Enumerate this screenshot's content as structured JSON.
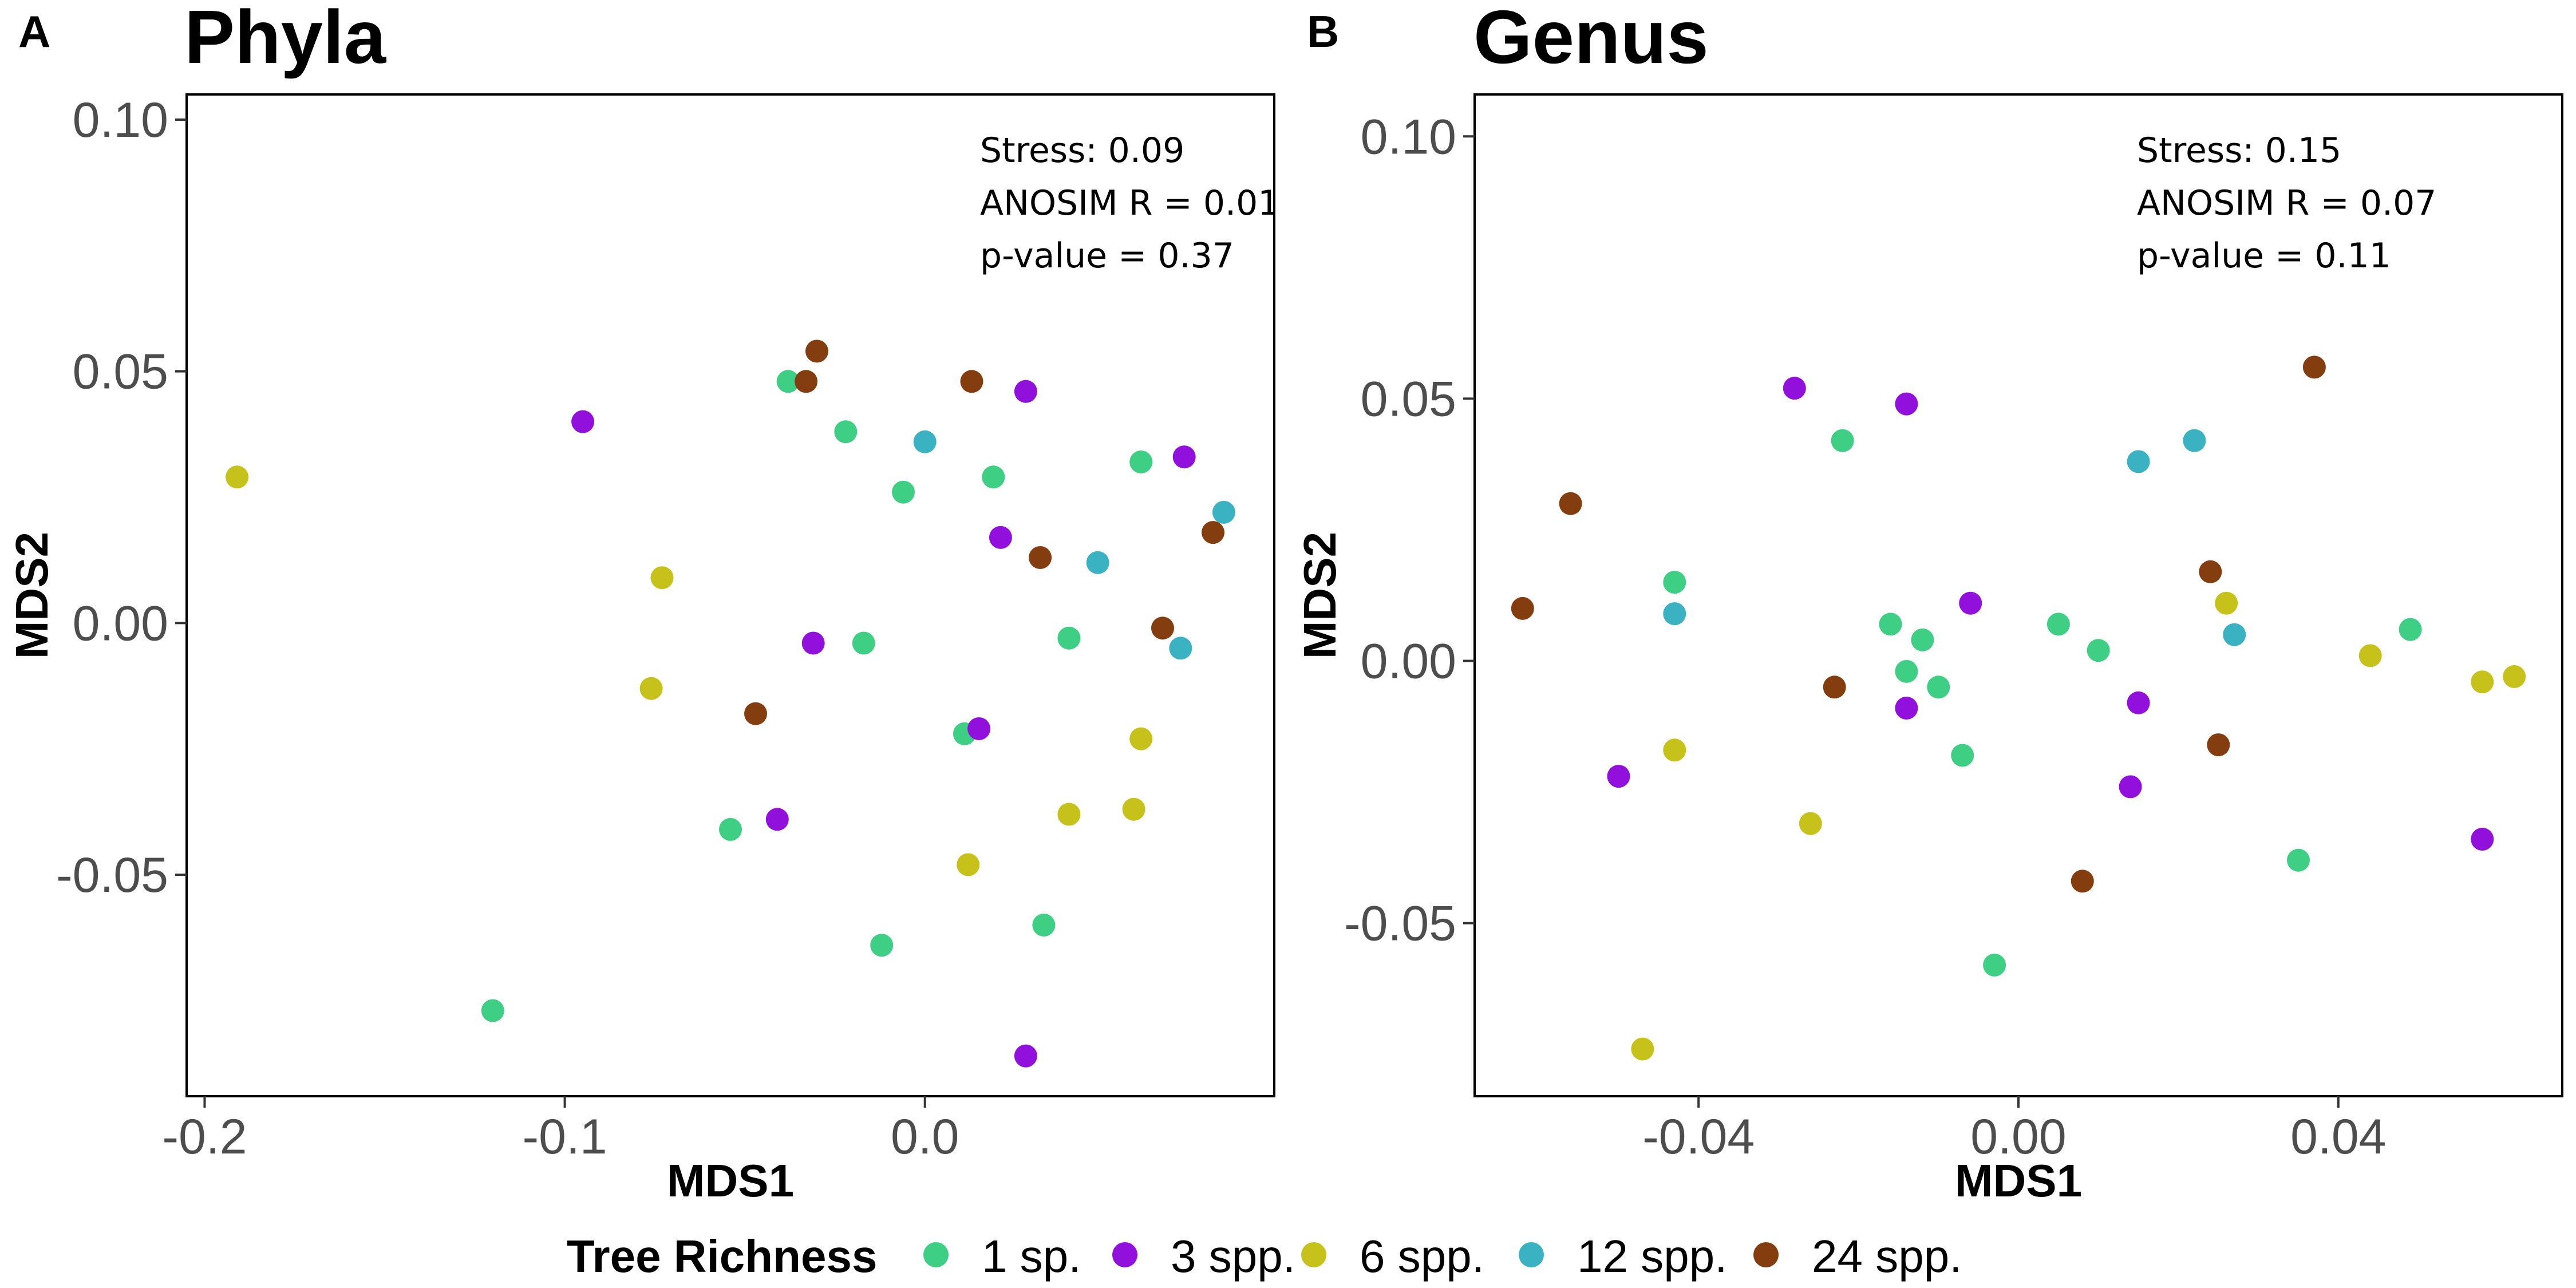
{
  "chart_data": [
    {
      "type": "scatter",
      "panel_letter": "A",
      "title": "Phyla",
      "xlabel": "MDS1",
      "ylabel": "MDS2",
      "xlim": [
        -0.205,
        0.097
      ],
      "ylim": [
        -0.094,
        0.105
      ],
      "xticks": [
        {
          "v": -0.2,
          "label": "-0.2"
        },
        {
          "v": -0.1,
          "label": "-0.1"
        },
        {
          "v": 0.0,
          "label": "0.0"
        }
      ],
      "yticks": [
        {
          "v": 0.1,
          "label": "0.10"
        },
        {
          "v": 0.05,
          "label": "0.05"
        },
        {
          "v": 0.0,
          "label": "0.00"
        },
        {
          "v": -0.05,
          "label": "-0.05"
        }
      ],
      "annotations": [
        "Stress:  0.09",
        "ANOSIM R =  0.01",
        "p-value =  0.37"
      ],
      "grid": false,
      "series": [
        {
          "name": "1 sp.",
          "points": [
            [
              -0.038,
              0.048
            ],
            [
              -0.022,
              0.038
            ],
            [
              -0.006,
              0.026
            ],
            [
              0.019,
              0.029
            ],
            [
              0.06,
              0.032
            ],
            [
              -0.017,
              -0.004
            ],
            [
              0.04,
              -0.003
            ],
            [
              0.011,
              -0.022
            ],
            [
              -0.054,
              -0.041
            ],
            [
              -0.012,
              -0.064
            ],
            [
              0.033,
              -0.06
            ],
            [
              -0.12,
              -0.077
            ]
          ]
        },
        {
          "name": "3 spp.",
          "points": [
            [
              -0.095,
              0.04
            ],
            [
              0.028,
              0.046
            ],
            [
              0.072,
              0.033
            ],
            [
              0.021,
              0.017
            ],
            [
              -0.031,
              -0.004
            ],
            [
              0.015,
              -0.021
            ],
            [
              -0.041,
              -0.039
            ],
            [
              0.028,
              -0.086
            ]
          ]
        },
        {
          "name": "6 spp.",
          "points": [
            [
              -0.191,
              0.029
            ],
            [
              -0.073,
              0.009
            ],
            [
              -0.076,
              -0.013
            ],
            [
              0.06,
              -0.023
            ],
            [
              0.04,
              -0.038
            ],
            [
              0.058,
              -0.037
            ],
            [
              0.012,
              -0.048
            ]
          ]
        },
        {
          "name": "12 spp.",
          "points": [
            [
              0.0,
              0.036
            ],
            [
              0.048,
              0.012
            ],
            [
              0.083,
              0.022
            ],
            [
              0.071,
              -0.005
            ]
          ]
        },
        {
          "name": "24 spp.",
          "points": [
            [
              -0.03,
              0.054
            ],
            [
              -0.033,
              0.048
            ],
            [
              0.013,
              0.048
            ],
            [
              0.032,
              0.013
            ],
            [
              0.08,
              0.018
            ],
            [
              0.066,
              -0.001
            ],
            [
              -0.047,
              -0.018
            ]
          ]
        }
      ]
    },
    {
      "type": "scatter",
      "panel_letter": "B",
      "title": "Genus",
      "xlabel": "MDS1",
      "ylabel": "MDS2",
      "xlim": [
        -0.068,
        0.068
      ],
      "ylim": [
        -0.083,
        0.108
      ],
      "xticks": [
        {
          "v": -0.04,
          "label": "-0.04"
        },
        {
          "v": 0.0,
          "label": "0.00"
        },
        {
          "v": 0.04,
          "label": "0.04"
        }
      ],
      "yticks": [
        {
          "v": 0.1,
          "label": "0.10"
        },
        {
          "v": 0.05,
          "label": "0.05"
        },
        {
          "v": 0.0,
          "label": "0.00"
        },
        {
          "v": -0.05,
          "label": "-0.05"
        }
      ],
      "annotations": [
        "Stress:  0.15",
        "ANOSIM R =  0.07",
        "p-value =  0.11"
      ],
      "grid": false,
      "series": [
        {
          "name": "1 sp.",
          "points": [
            [
              -0.022,
              0.042
            ],
            [
              -0.043,
              0.015
            ],
            [
              -0.016,
              0.007
            ],
            [
              -0.012,
              0.004
            ],
            [
              -0.014,
              -0.002
            ],
            [
              -0.01,
              -0.005
            ],
            [
              -0.007,
              -0.018
            ],
            [
              0.005,
              0.007
            ],
            [
              0.01,
              0.002
            ],
            [
              0.049,
              0.006
            ],
            [
              0.035,
              -0.038
            ],
            [
              -0.003,
              -0.058
            ]
          ]
        },
        {
          "name": "3 spp.",
          "points": [
            [
              -0.028,
              0.052
            ],
            [
              -0.014,
              0.049
            ],
            [
              -0.006,
              0.011
            ],
            [
              -0.014,
              -0.009
            ],
            [
              -0.05,
              -0.022
            ],
            [
              0.015,
              -0.008
            ],
            [
              0.014,
              -0.024
            ],
            [
              0.058,
              -0.034
            ]
          ]
        },
        {
          "name": "6 spp.",
          "points": [
            [
              0.026,
              0.011
            ],
            [
              0.044,
              0.001
            ],
            [
              0.058,
              -0.004
            ],
            [
              0.062,
              -0.003
            ],
            [
              -0.043,
              -0.017
            ],
            [
              -0.026,
              -0.031
            ],
            [
              -0.047,
              -0.074
            ]
          ]
        },
        {
          "name": "12 spp.",
          "points": [
            [
              0.015,
              0.038
            ],
            [
              0.022,
              0.042
            ],
            [
              -0.043,
              0.009
            ],
            [
              0.027,
              0.005
            ]
          ]
        },
        {
          "name": "24 spp.",
          "points": [
            [
              0.037,
              0.056
            ],
            [
              -0.056,
              0.03
            ],
            [
              -0.062,
              0.01
            ],
            [
              0.024,
              0.017
            ],
            [
              -0.023,
              -0.005
            ],
            [
              0.025,
              -0.016
            ],
            [
              0.008,
              -0.042
            ]
          ]
        }
      ]
    }
  ],
  "legend": {
    "title": "Tree Richness",
    "placement": "bottom",
    "items": [
      {
        "label": "1 sp.",
        "color": "#3ecf84"
      },
      {
        "label": "3 spp.",
        "color": "#9210db"
      },
      {
        "label": "6 spp.",
        "color": "#c6c21b"
      },
      {
        "label": "12 spp.",
        "color": "#3bb2c2"
      },
      {
        "label": "24 spp.",
        "color": "#833d0e"
      }
    ]
  }
}
